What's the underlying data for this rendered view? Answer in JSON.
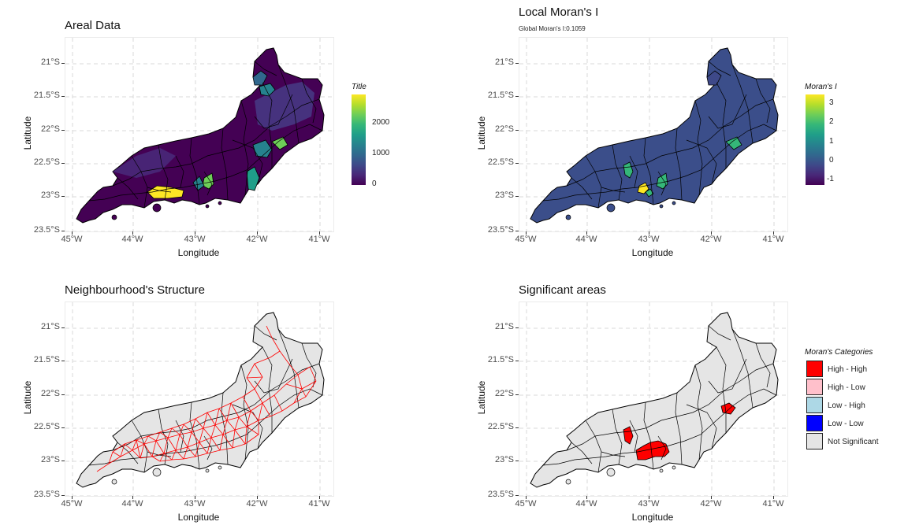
{
  "axis": {
    "xlabel": "Longitude",
    "ylabel": "Latitude",
    "x_ticks": [
      "45°W",
      "44°W",
      "43°W",
      "42°W",
      "41°W"
    ],
    "y_ticks": [
      "21°S",
      "21.5°S",
      "22°S",
      "22.5°S",
      "23°S",
      "23.5°S"
    ]
  },
  "panels": {
    "areal": {
      "title": "Areal Data",
      "legend_title": "Title",
      "legend_ticks": [
        "2000",
        "1000",
        "0"
      ]
    },
    "moran": {
      "title": "Local Moran's I",
      "subtitle": "Global Moran's I:0.1059",
      "legend_title": "Moran's I",
      "legend_ticks": [
        "3",
        "2",
        "1",
        "0",
        "-1"
      ]
    },
    "neigh": {
      "title": "Neighbourhood's Structure"
    },
    "signif": {
      "title": "Significant areas",
      "legend_title": "Moran's Categories",
      "categories": [
        {
          "label": "High - High",
          "color": "#ff0000"
        },
        {
          "label": "High - Low",
          "color": "#ffc0cb"
        },
        {
          "label": "Low - High",
          "color": "#add8e6"
        },
        {
          "label": "Low - Low",
          "color": "#0000ff"
        },
        {
          "label": "Not Significant",
          "color": "#e5e5e5"
        }
      ]
    }
  },
  "chart_data": [
    {
      "type": "choropleth",
      "title": "Areal Data",
      "xlabel": "Longitude",
      "ylabel": "Latitude",
      "xlim": [
        -45,
        -41
      ],
      "ylim": [
        -23.5,
        -21
      ],
      "legend_title": "Title",
      "colorscale": "viridis",
      "color_range": [
        0,
        2800
      ],
      "legend_ticks": [
        0,
        1000,
        2000
      ]
    },
    {
      "type": "choropleth",
      "title": "Local Moran's I",
      "subtitle": "Global Moran's I:0.1059",
      "xlabel": "Longitude",
      "ylabel": "Latitude",
      "legend_title": "Moran's I",
      "colorscale": "viridis",
      "color_range": [
        -1.4,
        3.4
      ],
      "legend_ticks": [
        -1,
        0,
        1,
        2,
        3
      ]
    },
    {
      "type": "network",
      "title": "Neighbourhood's Structure",
      "xlabel": "Longitude",
      "ylabel": "Latitude",
      "edge_color": "#ff0000",
      "fill": "#e5e5e5"
    },
    {
      "type": "choropleth",
      "title": "Significant areas",
      "xlabel": "Longitude",
      "ylabel": "Latitude",
      "legend_title": "Moran's Categories",
      "categories": [
        "High - High",
        "High - Low",
        "Low - High",
        "Low - Low",
        "Not Significant"
      ]
    }
  ]
}
